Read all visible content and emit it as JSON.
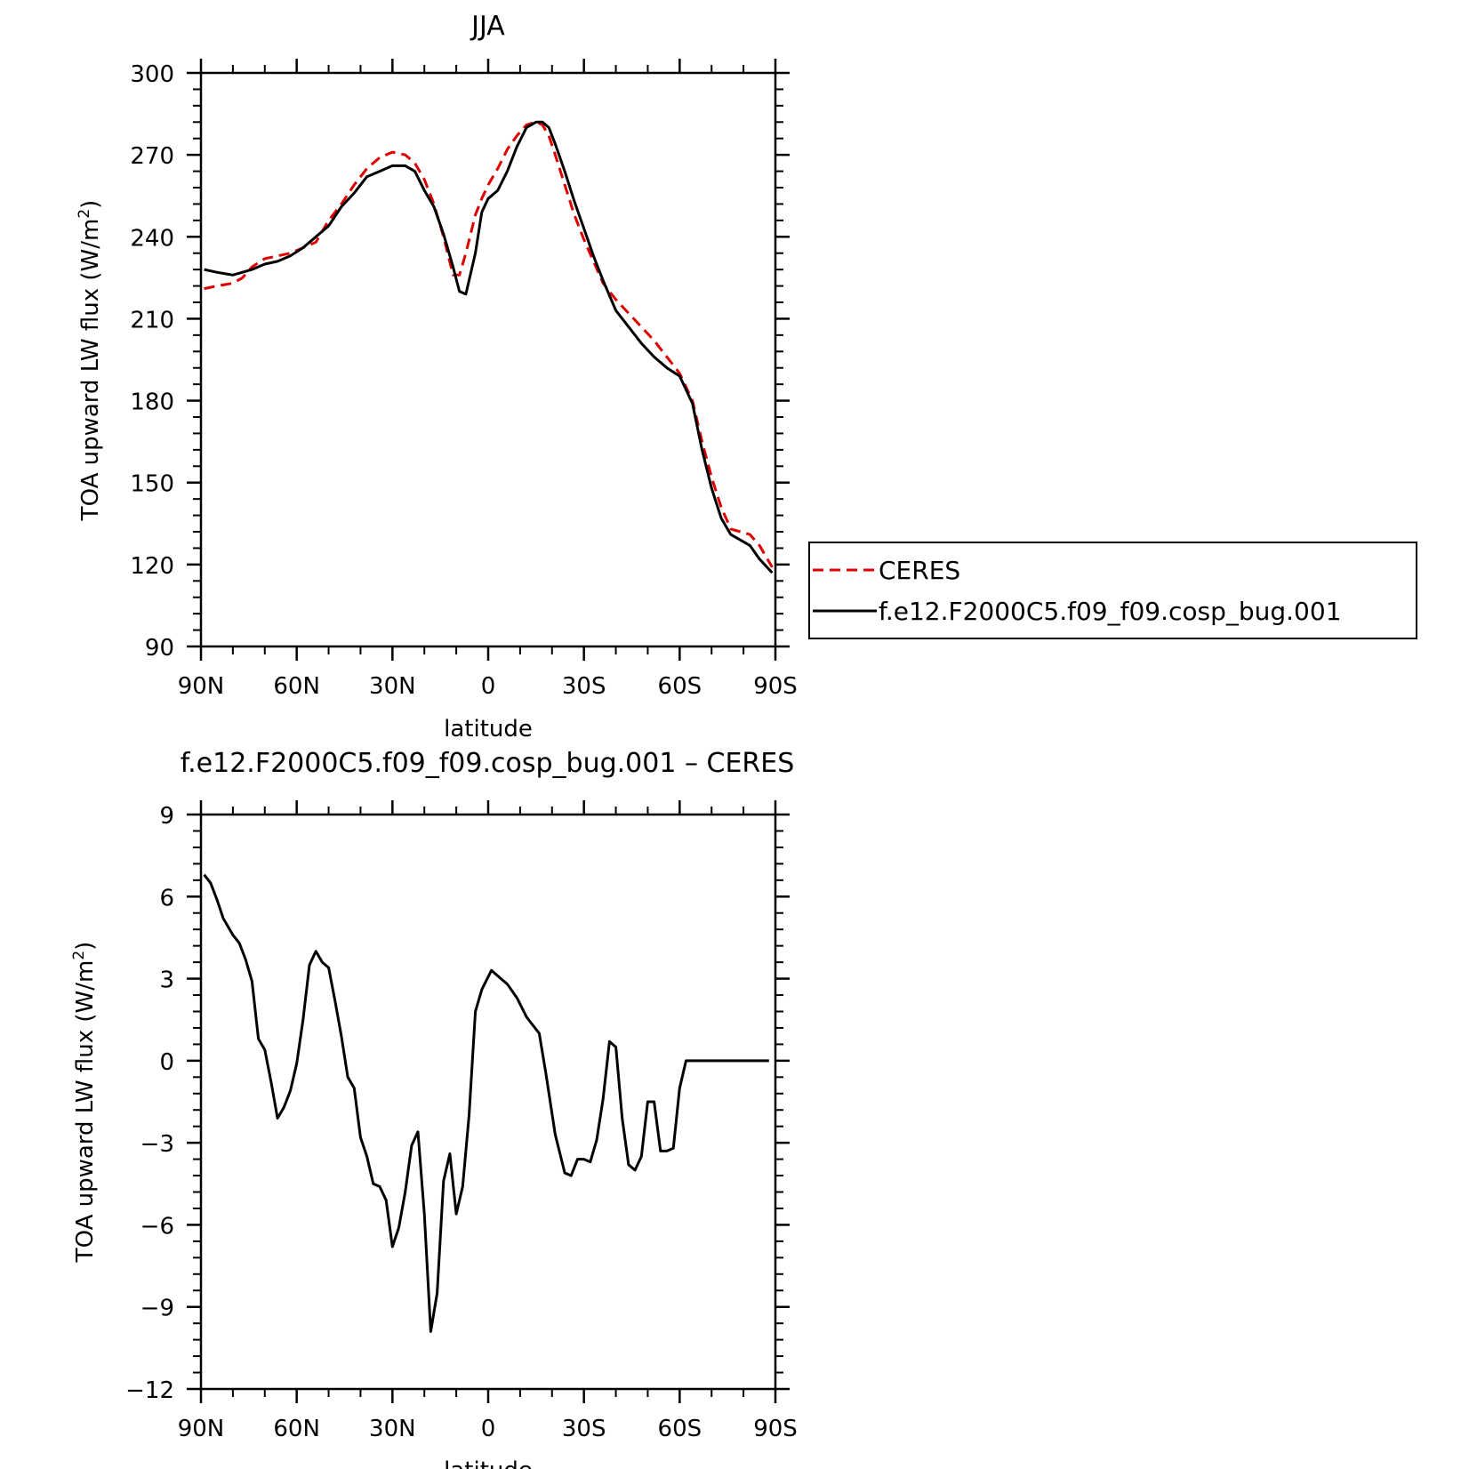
{
  "colors": {
    "model": "#000000",
    "obs": "#e00000",
    "frame": "#000000"
  },
  "chart_data": [
    {
      "type": "line",
      "title": "JJA",
      "xlabel": "latitude",
      "ylabel_main": "TOA upward LW flux (W/m",
      "ylabel_sup": "2",
      "ylabel_end": ")",
      "xlim": [
        -90,
        90
      ],
      "ylim": [
        90,
        300
      ],
      "x_direction": "north-to-south",
      "xticks": [
        -90,
        -60,
        -30,
        0,
        30,
        60,
        90
      ],
      "xtick_labels": [
        "90N",
        "60N",
        "30N",
        "0",
        "30S",
        "60S",
        "90S"
      ],
      "yticks": [
        90,
        120,
        150,
        180,
        210,
        240,
        270,
        300
      ],
      "ytick_labels": [
        "90",
        "120",
        "150",
        "180",
        "210",
        "240",
        "270",
        "300"
      ],
      "legend_position": "right",
      "series": [
        {
          "name": "CERES",
          "style": "dashed",
          "color": "#e00000",
          "x": [
            -89,
            -85,
            -80,
            -77,
            -74,
            -70,
            -66,
            -62,
            -58,
            -54,
            -50,
            -46,
            -42,
            -38,
            -34,
            -30,
            -26,
            -23,
            -20,
            -17,
            -14,
            -11,
            -9,
            -7,
            -4,
            -2,
            0,
            3,
            6,
            9,
            12,
            15,
            17,
            19,
            21,
            24,
            27,
            30,
            33,
            36,
            40,
            44,
            48,
            52,
            56,
            60,
            64,
            67,
            70,
            73,
            76,
            79,
            82,
            85,
            89
          ],
          "y": [
            221,
            222,
            223,
            225,
            229,
            232,
            233,
            234,
            236,
            238,
            246,
            252,
            259,
            265,
            269,
            271,
            270,
            267,
            261,
            252,
            240,
            226,
            226,
            234,
            248,
            254,
            259,
            265,
            272,
            277,
            281,
            282,
            281,
            277,
            270,
            259,
            248,
            239,
            231,
            223,
            217,
            212,
            207,
            202,
            196,
            190,
            180,
            165,
            152,
            141,
            133,
            132,
            131,
            127,
            119
          ]
        },
        {
          "name": "f.e12.F2000C5.f09_f09.cosp_bug.001",
          "style": "solid",
          "color": "#000000",
          "x": [
            -89,
            -85,
            -80,
            -77,
            -74,
            -70,
            -66,
            -62,
            -58,
            -54,
            -50,
            -46,
            -42,
            -38,
            -34,
            -30,
            -26,
            -23,
            -20,
            -17,
            -14,
            -11,
            -9,
            -7,
            -4,
            -2,
            0,
            3,
            6,
            9,
            12,
            15,
            17,
            19,
            21,
            24,
            27,
            30,
            33,
            36,
            40,
            44,
            48,
            52,
            56,
            60,
            64,
            67,
            70,
            73,
            76,
            79,
            82,
            85,
            89
          ],
          "y": [
            228,
            227,
            226,
            227,
            228,
            230,
            231,
            233,
            236,
            240,
            244,
            251,
            256,
            262,
            264,
            266,
            266,
            264,
            257,
            251,
            241,
            229,
            220,
            219,
            234,
            249,
            254,
            257,
            264,
            273,
            280,
            282,
            282,
            280,
            274,
            264,
            253,
            243,
            233,
            224,
            213,
            207,
            201,
            196,
            192,
            189,
            179,
            162,
            148,
            137,
            131,
            129,
            127,
            122,
            117
          ]
        }
      ]
    },
    {
      "type": "line",
      "title": "f.e12.F2000C5.f09_f09.cosp_bug.001 – CERES",
      "xlabel": "latitude",
      "ylabel_main": "TOA upward LW flux (W/m",
      "ylabel_sup": "2",
      "ylabel_end": ")",
      "xlim": [
        -90,
        90
      ],
      "ylim": [
        -12,
        9
      ],
      "x_direction": "north-to-south",
      "xticks": [
        -90,
        -60,
        -30,
        0,
        30,
        60,
        90
      ],
      "xtick_labels": [
        "90N",
        "60N",
        "30N",
        "0",
        "30S",
        "60S",
        "90S"
      ],
      "yticks": [
        -12,
        -9,
        -6,
        -3,
        0,
        3,
        6,
        9
      ],
      "ytick_labels": [
        "−12",
        "−9",
        "−6",
        "−3",
        "0",
        "3",
        "6",
        "9"
      ],
      "series": [
        {
          "name": "",
          "style": "solid",
          "color": "#000000",
          "x": [
            -89,
            -87,
            -85,
            -83,
            -80,
            -78,
            -76,
            -74,
            -72,
            -70,
            -68,
            -66,
            -64,
            -62,
            -60,
            -58,
            -56,
            -54,
            -52,
            -50,
            -48,
            -46,
            -44,
            -42,
            -40,
            -38,
            -36,
            -34,
            -32,
            -30,
            -28,
            -26,
            -24,
            -22,
            -20,
            -18,
            -16,
            -14,
            -12,
            -10,
            -8,
            -6,
            -4,
            -2,
            1,
            3,
            6,
            9,
            12,
            14,
            16,
            18,
            21,
            24,
            26,
            28,
            30,
            32,
            34,
            36,
            38,
            40,
            42,
            44,
            46,
            48,
            50,
            52,
            54,
            56,
            58,
            60,
            62,
            64,
            66,
            68,
            70,
            72,
            74,
            76,
            78,
            80,
            82,
            84,
            86,
            88,
            90
          ],
          "y": [
            6.8,
            6.5,
            5.9,
            5.2,
            4.6,
            4.3,
            3.7,
            2.9,
            0.8,
            0.4,
            -0.8,
            -2.1,
            -1.7,
            -1.1,
            -0.1,
            1.5,
            3.5,
            4.0,
            3.6,
            3.4,
            2.2,
            0.9,
            -0.6,
            -1.0,
            -2.8,
            -3.5,
            -4.5,
            -4.6,
            -5.1,
            -6.8,
            -6.1,
            -4.8,
            -3.1,
            -2.6,
            -5.6,
            -9.9,
            -8.5,
            -4.4,
            -3.4,
            -5.6,
            -4.6,
            -2.0,
            1.8,
            2.6,
            3.3,
            3.1,
            2.8,
            2.3,
            1.6,
            1.3,
            1.0,
            -0.4,
            -2.7,
            -4.1,
            -4.2,
            -3.6,
            -3.6,
            -3.7,
            -2.9,
            -1.4,
            0.7,
            0.5,
            -2.1,
            -3.8,
            -4.0,
            -3.5,
            -1.5,
            -1.5,
            -3.3,
            -3.3,
            -3.2,
            -1.0,
            0.0,
            0.0,
            0.0,
            0.0,
            0.0,
            0.0,
            0.0,
            0.0,
            0.0,
            0.0,
            0.0,
            0.0,
            0.0,
            0.0,
            0.0
          ]
        }
      ]
    }
  ],
  "legend": {
    "items": [
      {
        "label": "CERES",
        "style": "dashed",
        "color": "#e00000"
      },
      {
        "label": "f.e12.F2000C5.f09_f09.cosp_bug.001",
        "style": "solid",
        "color": "#000000"
      }
    ]
  }
}
